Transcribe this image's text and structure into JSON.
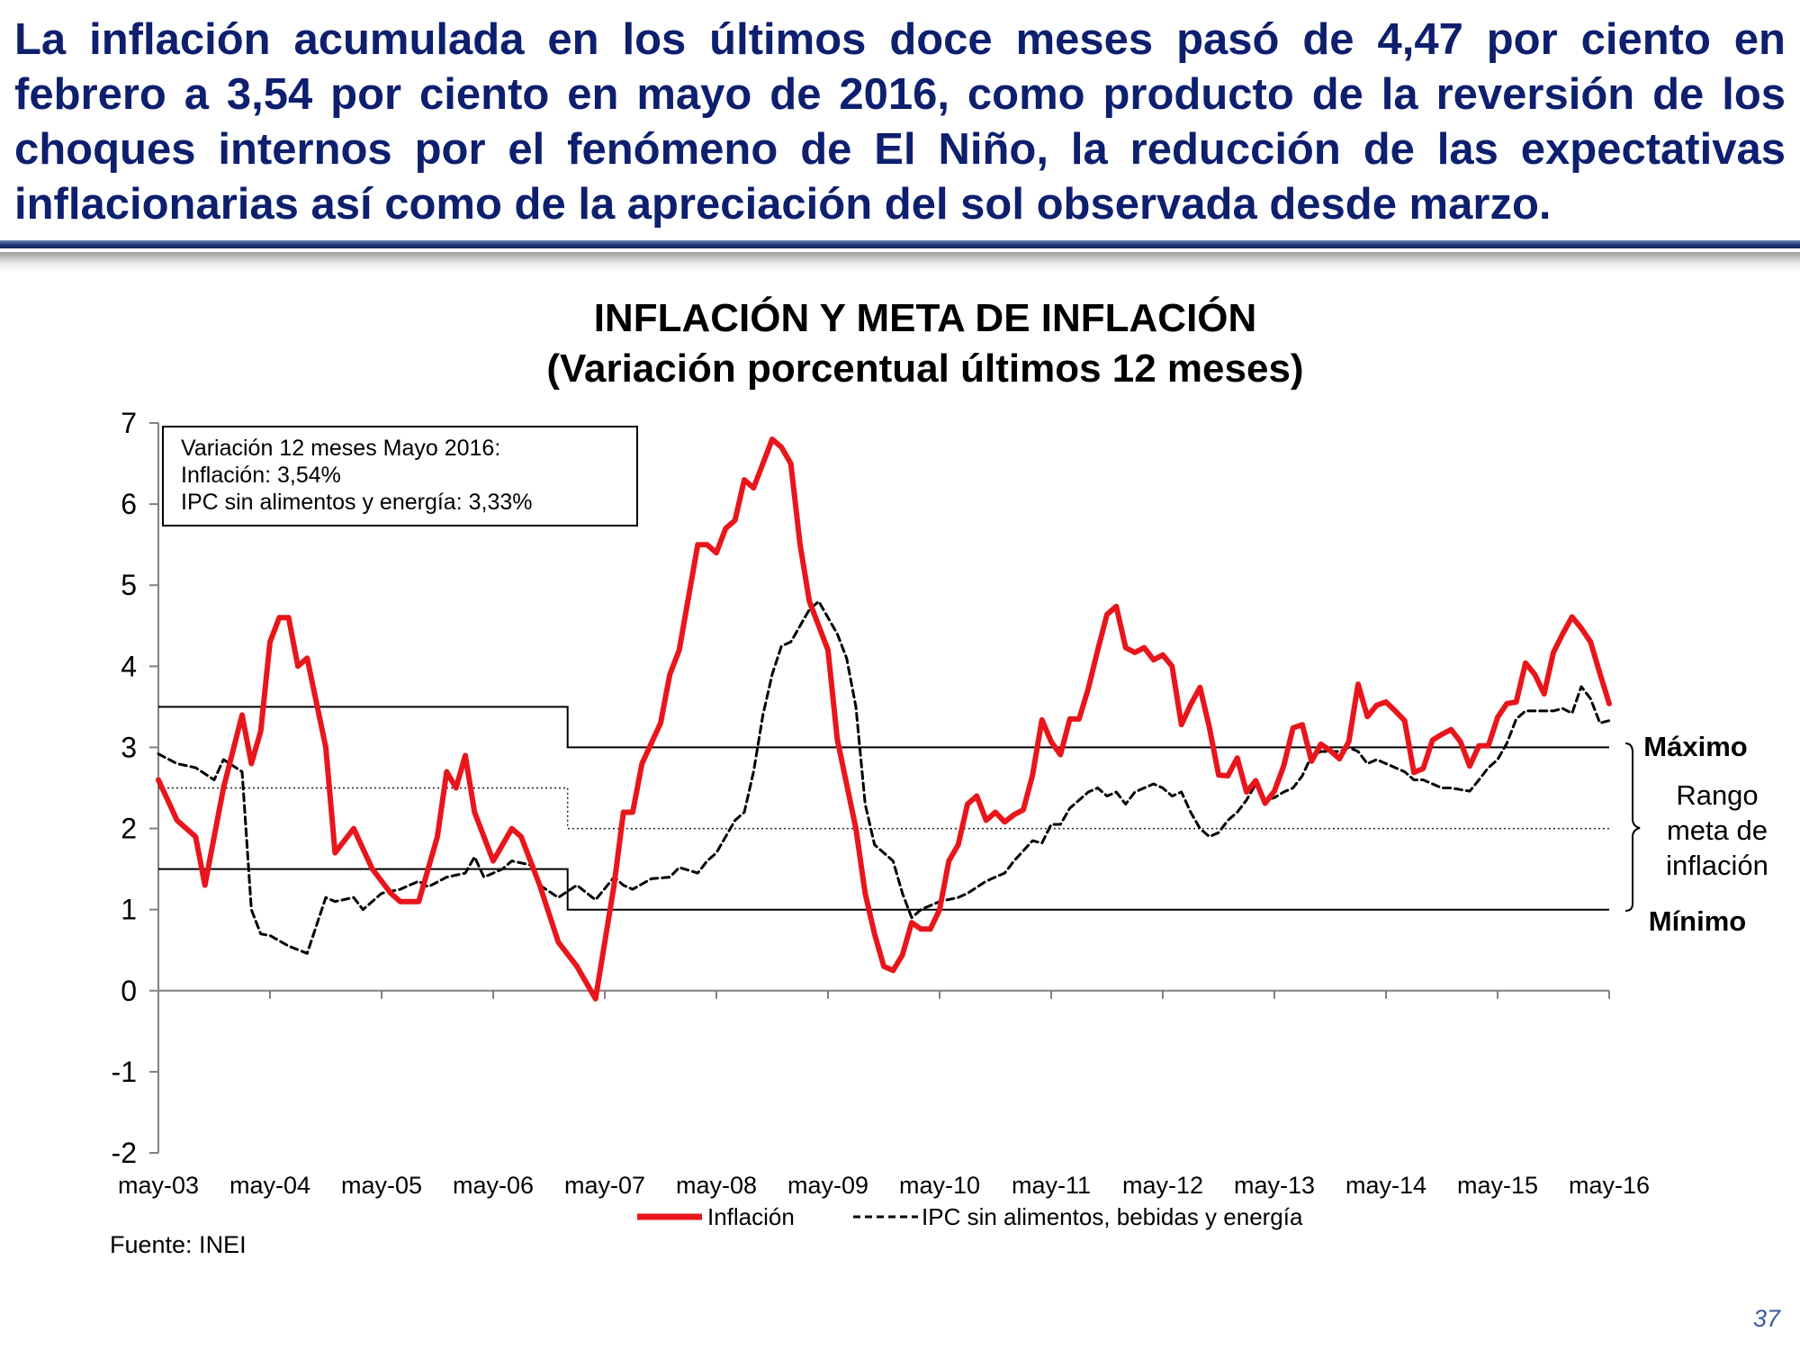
{
  "headline": "La inflación acumulada en los últimos doce meses pasó de 4,47 por ciento en febrero a 3,54 por ciento en mayo de 2016, como producto de la reversión de los choques internos por el fenómeno de El Niño, la reducción de las expectativas inflacionarias así como de la apreciación del sol observada desde marzo.",
  "page_number": "37",
  "source": "Fuente: INEI",
  "colors": {
    "headline": "#0d1f6e",
    "inflation_line": "#e8161b",
    "core_line": "#000000",
    "page_number": "#3b5998"
  },
  "chart_data": {
    "type": "line",
    "title": "INFLACIÓN Y META DE INFLACIÓN",
    "subtitle": "(Variación porcentual últimos 12 meses)",
    "ylim": [
      -2,
      7
    ],
    "yticks": [
      "7",
      "6",
      "5",
      "4",
      "3",
      "2",
      "1",
      "0",
      "-1",
      "-2"
    ],
    "x_start": "may-03",
    "x_end": "may-16",
    "xticks": [
      "may-03",
      "may-04",
      "may-05",
      "may-06",
      "may-07",
      "may-08",
      "may-09",
      "may-10",
      "may-11",
      "may-12",
      "may-13",
      "may-14",
      "may-15",
      "may-16"
    ],
    "grid": false,
    "legend_position": "bottom",
    "series": [
      {
        "name": "Inflación",
        "color": "#e8161b",
        "style": "solid",
        "points": [
          [
            "may-03",
            2.6
          ],
          [
            "jul-03",
            2.1
          ],
          [
            "sep-03",
            1.9
          ],
          [
            "oct-03",
            1.3
          ],
          [
            "dic-03",
            2.5
          ],
          [
            "feb-04",
            3.4
          ],
          [
            "mar-04",
            2.8
          ],
          [
            "abr-04",
            3.2
          ],
          [
            "may-04",
            4.3
          ],
          [
            "jun-04",
            4.6
          ],
          [
            "jul-04",
            4.6
          ],
          [
            "ago-04",
            4.0
          ],
          [
            "sep-04",
            4.1
          ],
          [
            "nov-04",
            3.0
          ],
          [
            "dic-04",
            1.7
          ],
          [
            "feb-05",
            2.0
          ],
          [
            "abr-05",
            1.5
          ],
          [
            "jun-05",
            1.2
          ],
          [
            "jul-05",
            1.1
          ],
          [
            "sep-05",
            1.1
          ],
          [
            "nov-05",
            1.9
          ],
          [
            "dic-05",
            2.7
          ],
          [
            "ene-06",
            2.5
          ],
          [
            "feb-06",
            2.9
          ],
          [
            "mar-06",
            2.2
          ],
          [
            "may-06",
            1.6
          ],
          [
            "jul-06",
            2.0
          ],
          [
            "ago-06",
            1.9
          ],
          [
            "oct-06",
            1.3
          ],
          [
            "dic-06",
            0.6
          ],
          [
            "feb-07",
            0.3
          ],
          [
            "abr-07",
            -0.1
          ],
          [
            "jun-07",
            1.3
          ],
          [
            "jul-07",
            2.2
          ],
          [
            "ago-07",
            2.2
          ],
          [
            "sep-07",
            2.8
          ],
          [
            "nov-07",
            3.3
          ],
          [
            "dic-07",
            3.9
          ],
          [
            "ene-08",
            4.2
          ],
          [
            "mar-08",
            5.5
          ],
          [
            "abr-08",
            5.5
          ],
          [
            "may-08",
            5.4
          ],
          [
            "jun-08",
            5.7
          ],
          [
            "jul-08",
            5.8
          ],
          [
            "ago-08",
            6.3
          ],
          [
            "sep-08",
            6.2
          ],
          [
            "oct-08",
            6.5
          ],
          [
            "nov-08",
            6.8
          ],
          [
            "dic-08",
            6.7
          ],
          [
            "ene-09",
            6.5
          ],
          [
            "feb-09",
            5.5
          ],
          [
            "mar-09",
            4.8
          ],
          [
            "may-09",
            4.2
          ],
          [
            "jun-09",
            3.1
          ],
          [
            "ago-09",
            2.0
          ],
          [
            "sep-09",
            1.2
          ],
          [
            "oct-09",
            0.7
          ],
          [
            "nov-09",
            0.3
          ],
          [
            "dic-09",
            0.25
          ],
          [
            "ene-10",
            0.44
          ],
          [
            "feb-10",
            0.84
          ],
          [
            "mar-10",
            0.76
          ],
          [
            "abr-10",
            0.76
          ],
          [
            "may-10",
            1.0
          ],
          [
            "jun-10",
            1.6
          ],
          [
            "jul-10",
            1.8
          ],
          [
            "ago-10",
            2.3
          ],
          [
            "sep-10",
            2.4
          ],
          [
            "oct-10",
            2.1
          ],
          [
            "nov-10",
            2.2
          ],
          [
            "dic-10",
            2.08
          ],
          [
            "ene-11",
            2.17
          ],
          [
            "feb-11",
            2.23
          ],
          [
            "mar-11",
            2.66
          ],
          [
            "abr-11",
            3.34
          ],
          [
            "may-11",
            3.07
          ],
          [
            "jun-11",
            2.91
          ],
          [
            "jul-11",
            3.35
          ],
          [
            "ago-11",
            3.35
          ],
          [
            "sep-11",
            3.73
          ],
          [
            "oct-11",
            4.2
          ],
          [
            "nov-11",
            4.64
          ],
          [
            "dic-11",
            4.74
          ],
          [
            "ene-12",
            4.23
          ],
          [
            "feb-12",
            4.17
          ],
          [
            "mar-12",
            4.23
          ],
          [
            "abr-12",
            4.08
          ],
          [
            "may-12",
            4.14
          ],
          [
            "jun-12",
            4.0
          ],
          [
            "jul-12",
            3.28
          ],
          [
            "ago-12",
            3.53
          ],
          [
            "sep-12",
            3.74
          ],
          [
            "oct-12",
            3.25
          ],
          [
            "nov-12",
            2.66
          ],
          [
            "dic-12",
            2.65
          ],
          [
            "ene-13",
            2.87
          ],
          [
            "feb-13",
            2.45
          ],
          [
            "mar-13",
            2.59
          ],
          [
            "abr-13",
            2.31
          ],
          [
            "may-13",
            2.46
          ],
          [
            "jun-13",
            2.77
          ],
          [
            "jul-13",
            3.24
          ],
          [
            "ago-13",
            3.28
          ],
          [
            "sep-13",
            2.83
          ],
          [
            "oct-13",
            3.04
          ],
          [
            "nov-13",
            2.96
          ],
          [
            "dic-13",
            2.86
          ],
          [
            "ene-14",
            3.07
          ],
          [
            "feb-14",
            3.78
          ],
          [
            "mar-14",
            3.38
          ],
          [
            "abr-14",
            3.52
          ],
          [
            "may-14",
            3.56
          ],
          [
            "jun-14",
            3.45
          ],
          [
            "jul-14",
            3.33
          ],
          [
            "ago-14",
            2.69
          ],
          [
            "sep-14",
            2.74
          ],
          [
            "oct-14",
            3.09
          ],
          [
            "nov-14",
            3.16
          ],
          [
            "dic-14",
            3.22
          ],
          [
            "ene-15",
            3.07
          ],
          [
            "feb-15",
            2.77
          ],
          [
            "mar-15",
            3.02
          ],
          [
            "abr-15",
            3.02
          ],
          [
            "may-15",
            3.37
          ],
          [
            "jun-15",
            3.54
          ],
          [
            "jul-15",
            3.56
          ],
          [
            "ago-15",
            4.04
          ],
          [
            "sep-15",
            3.9
          ],
          [
            "oct-15",
            3.66
          ],
          [
            "nov-15",
            4.17
          ],
          [
            "dic-15",
            4.4
          ],
          [
            "ene-16",
            4.61
          ],
          [
            "feb-16",
            4.47
          ],
          [
            "mar-16",
            4.3
          ],
          [
            "abr-16",
            3.91
          ],
          [
            "may-16",
            3.54
          ]
        ]
      },
      {
        "name": "IPC sin alimentos, bebidas y energía",
        "color": "#000000",
        "style": "dashed",
        "points": [
          [
            "may-03",
            2.92
          ],
          [
            "jul-03",
            2.8
          ],
          [
            "sep-03",
            2.75
          ],
          [
            "nov-03",
            2.6
          ],
          [
            "dic-03",
            2.85
          ],
          [
            "feb-04",
            2.7
          ],
          [
            "mar-04",
            1.0
          ],
          [
            "abr-04",
            0.7
          ],
          [
            "may-04",
            0.68
          ],
          [
            "jul-04",
            0.55
          ],
          [
            "sep-04",
            0.46
          ],
          [
            "nov-04",
            1.15
          ],
          [
            "dic-04",
            1.1
          ],
          [
            "feb-05",
            1.15
          ],
          [
            "mar-05",
            1.0
          ],
          [
            "may-05",
            1.2
          ],
          [
            "jul-05",
            1.25
          ],
          [
            "sep-05",
            1.35
          ],
          [
            "oct-05",
            1.28
          ],
          [
            "dic-05",
            1.4
          ],
          [
            "feb-06",
            1.45
          ],
          [
            "mar-06",
            1.65
          ],
          [
            "abr-06",
            1.4
          ],
          [
            "jun-06",
            1.5
          ],
          [
            "jul-06",
            1.6
          ],
          [
            "sep-06",
            1.55
          ],
          [
            "oct-06",
            1.3
          ],
          [
            "dic-06",
            1.15
          ],
          [
            "feb-07",
            1.3
          ],
          [
            "abr-07",
            1.12
          ],
          [
            "jun-07",
            1.4
          ],
          [
            "jul-07",
            1.3
          ],
          [
            "ago-07",
            1.25
          ],
          [
            "oct-07",
            1.38
          ],
          [
            "dic-07",
            1.4
          ],
          [
            "ene-08",
            1.52
          ],
          [
            "mar-08",
            1.45
          ],
          [
            "abr-08",
            1.6
          ],
          [
            "may-08",
            1.7
          ],
          [
            "jul-08",
            2.1
          ],
          [
            "ago-08",
            2.2
          ],
          [
            "sep-08",
            2.7
          ],
          [
            "oct-08",
            3.4
          ],
          [
            "nov-08",
            3.9
          ],
          [
            "dic-08",
            4.25
          ],
          [
            "ene-09",
            4.3
          ],
          [
            "feb-09",
            4.5
          ],
          [
            "mar-09",
            4.7
          ],
          [
            "abr-09",
            4.8
          ],
          [
            "may-09",
            4.6
          ],
          [
            "jun-09",
            4.4
          ],
          [
            "jul-09",
            4.1
          ],
          [
            "ago-09",
            3.5
          ],
          [
            "sep-09",
            2.3
          ],
          [
            "oct-09",
            1.8
          ],
          [
            "nov-09",
            1.7
          ],
          [
            "dic-09",
            1.6
          ],
          [
            "ene-10",
            1.2
          ],
          [
            "feb-10",
            0.9
          ],
          [
            "mar-10",
            1.0
          ],
          [
            "may-10",
            1.1
          ],
          [
            "jul-10",
            1.15
          ],
          [
            "ago-10",
            1.2
          ],
          [
            "oct-10",
            1.35
          ],
          [
            "dic-10",
            1.45
          ],
          [
            "ene-11",
            1.6
          ],
          [
            "mar-11",
            1.85
          ],
          [
            "abr-11",
            1.82
          ],
          [
            "may-11",
            2.05
          ],
          [
            "jun-11",
            2.05
          ],
          [
            "jul-11",
            2.25
          ],
          [
            "ago-11",
            2.35
          ],
          [
            "sep-11",
            2.45
          ],
          [
            "oct-11",
            2.5
          ],
          [
            "nov-11",
            2.4
          ],
          [
            "dic-11",
            2.45
          ],
          [
            "ene-12",
            2.3
          ],
          [
            "feb-12",
            2.45
          ],
          [
            "mar-12",
            2.5
          ],
          [
            "abr-12",
            2.55
          ],
          [
            "may-12",
            2.5
          ],
          [
            "jun-12",
            2.4
          ],
          [
            "jul-12",
            2.45
          ],
          [
            "ago-12",
            2.2
          ],
          [
            "sep-12",
            2.0
          ],
          [
            "oct-12",
            1.9
          ],
          [
            "nov-12",
            1.95
          ],
          [
            "dic-12",
            2.1
          ],
          [
            "ene-13",
            2.2
          ],
          [
            "feb-13",
            2.35
          ],
          [
            "mar-13",
            2.55
          ],
          [
            "abr-13",
            2.35
          ],
          [
            "may-13",
            2.38
          ],
          [
            "jun-13",
            2.45
          ],
          [
            "jul-13",
            2.5
          ],
          [
            "ago-13",
            2.65
          ],
          [
            "sep-13",
            2.9
          ],
          [
            "oct-13",
            2.95
          ],
          [
            "nov-13",
            2.95
          ],
          [
            "dic-13",
            2.95
          ],
          [
            "ene-14",
            3.0
          ],
          [
            "feb-14",
            2.95
          ],
          [
            "mar-14",
            2.8
          ],
          [
            "abr-14",
            2.85
          ],
          [
            "may-14",
            2.8
          ],
          [
            "jun-14",
            2.75
          ],
          [
            "jul-14",
            2.7
          ],
          [
            "ago-14",
            2.6
          ],
          [
            "sep-14",
            2.6
          ],
          [
            "oct-14",
            2.55
          ],
          [
            "nov-14",
            2.5
          ],
          [
            "dic-14",
            2.5
          ],
          [
            "ene-15",
            2.48
          ],
          [
            "feb-15",
            2.46
          ],
          [
            "mar-15",
            2.6
          ],
          [
            "abr-15",
            2.75
          ],
          [
            "may-15",
            2.85
          ],
          [
            "jun-15",
            3.05
          ],
          [
            "jul-15",
            3.35
          ],
          [
            "ago-15",
            3.45
          ],
          [
            "sep-15",
            3.45
          ],
          [
            "oct-15",
            3.45
          ],
          [
            "nov-15",
            3.45
          ],
          [
            "dic-15",
            3.48
          ],
          [
            "ene-16",
            3.42
          ],
          [
            "feb-16",
            3.75
          ],
          [
            "mar-16",
            3.6
          ],
          [
            "abr-16",
            3.3
          ],
          [
            "may-16",
            3.33
          ]
        ]
      }
    ],
    "target_band": {
      "upper": [
        {
          "from": "may-03",
          "to": "ene-07",
          "value": 3.5
        },
        {
          "from": "ene-07",
          "to": "may-16",
          "value": 3.0
        }
      ],
      "center": [
        {
          "from": "may-03",
          "to": "ene-07",
          "value": 2.5
        },
        {
          "from": "ene-07",
          "to": "may-16",
          "value": 2.0
        }
      ],
      "lower": [
        {
          "from": "may-03",
          "to": "ene-07",
          "value": 1.5
        },
        {
          "from": "ene-07",
          "to": "may-16",
          "value": 1.0
        }
      ]
    },
    "annotation_box": [
      "Variación 12 meses Mayo 2016:",
      "Inflación: 3,54%",
      "IPC sin alimentos y energía: 3,33%"
    ],
    "labels": {
      "max": "Máximo",
      "min": "Mínimo",
      "range": [
        "Rango",
        "meta de",
        "inflación"
      ]
    }
  }
}
